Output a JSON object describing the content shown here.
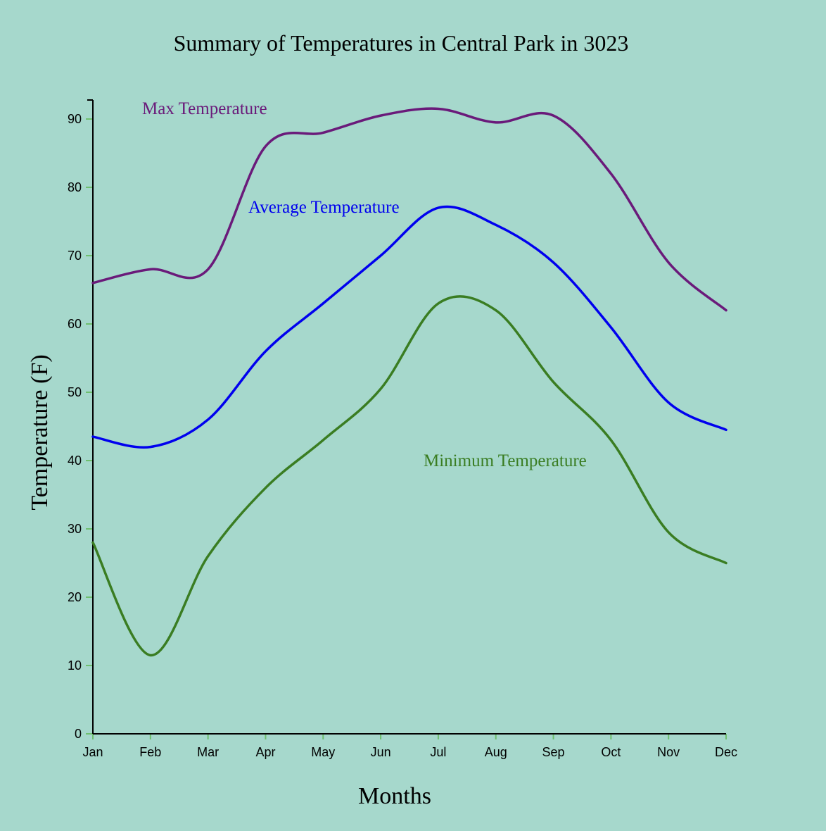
{
  "chart_data": {
    "type": "line",
    "title": "Summary of Temperatures in Central Park in 3023",
    "xlabel": "Months",
    "ylabel": "Temperature (F)",
    "categories": [
      "Jan",
      "Feb",
      "Mar",
      "Apr",
      "May",
      "Jun",
      "Jul",
      "Aug",
      "Sep",
      "Oct",
      "Nov",
      "Dec"
    ],
    "ylim": [
      0,
      93
    ],
    "yticks": [
      0,
      10,
      20,
      30,
      40,
      50,
      60,
      70,
      80,
      90
    ],
    "grid": false,
    "legend": "inline labels",
    "series": [
      {
        "name": "Max Temperature",
        "color": "#6a1a7a",
        "values": [
          66,
          68,
          68,
          86,
          88,
          90.5,
          91.5,
          89.5,
          90.5,
          82,
          69,
          62
        ]
      },
      {
        "name": "Average Temperature",
        "color": "#0000ee",
        "values": [
          43.5,
          42,
          46,
          56,
          63,
          70,
          77,
          74.5,
          69,
          59.5,
          48.5,
          44.5
        ]
      },
      {
        "name": "Minimum Temperature",
        "color": "#3a7d22",
        "values": [
          28,
          11.5,
          26,
          36,
          43,
          50.5,
          63,
          62,
          51.5,
          43,
          29.5,
          25
        ]
      }
    ],
    "axis_color": "#000000",
    "tick_color": "#6fbf6f"
  }
}
